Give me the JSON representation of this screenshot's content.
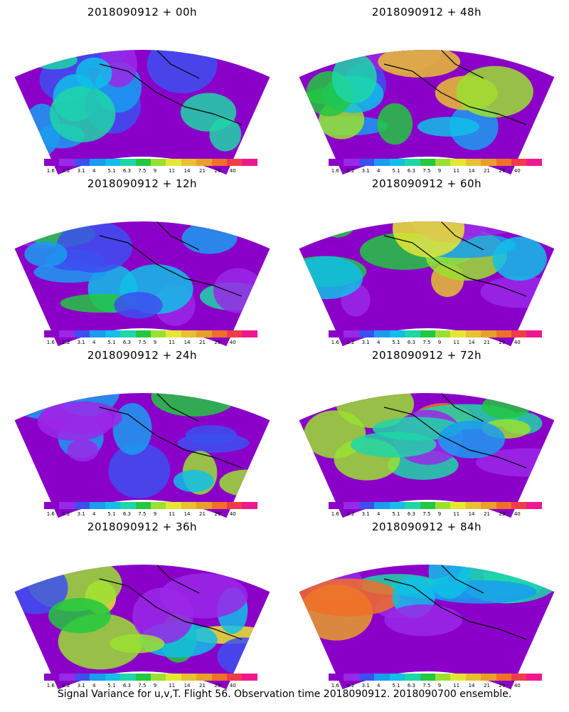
{
  "panels": [
    {
      "title": "2018090912 + 00h",
      "intensity": 0.15
    },
    {
      "title": "2018090912 + 48h",
      "intensity": 0.55
    },
    {
      "title": "2018090912 + 12h",
      "intensity": 0.25
    },
    {
      "title": "2018090912 + 60h",
      "intensity": 0.62
    },
    {
      "title": "2018090912 + 24h",
      "intensity": 0.35
    },
    {
      "title": "2018090912 + 72h",
      "intensity": 0.75
    },
    {
      "title": "2018090912 + 36h",
      "intensity": 0.45
    },
    {
      "title": "2018090912 + 84h",
      "intensity": 0.8
    }
  ],
  "colorbar": {
    "colors": [
      "#8a00c8",
      "#9a28e8",
      "#3c50f0",
      "#1a9cf0",
      "#10c0e8",
      "#1ed6a8",
      "#22c840",
      "#9ae030",
      "#e6e830",
      "#e8c030",
      "#e8a028",
      "#f07028",
      "#f03c48",
      "#f01890"
    ],
    "ticks": [
      "1.6",
      "2.2",
      "3.1",
      "4",
      "5.1",
      "6.3",
      "7.5",
      "9",
      "11",
      "14",
      "21",
      "29",
      "40"
    ]
  },
  "footer": "Signal Variance for u,v,T. Flight 56. Observation time 2018090912. 2018090700 ensemble."
}
